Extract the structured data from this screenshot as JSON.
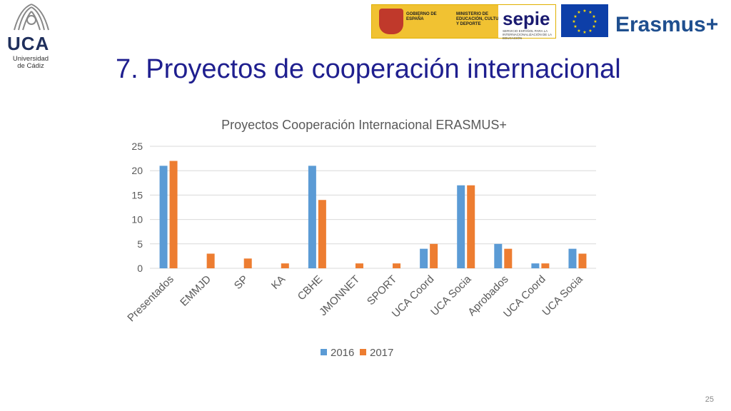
{
  "logo": {
    "uni_mark": "UCA",
    "uni_line1": "Universidad",
    "uni_line2": "de Cádiz"
  },
  "banners": {
    "gov_line1": "GOBIERNO DE ESPAÑA",
    "gov_line2": "MINISTERIO DE EDUCACIÓN, CULTURA Y DEPORTE",
    "sepie": "sepie",
    "sepie_sub": "SERVICIO ESPAÑOL PARA LA INTERNACIONALIZACIÓN DE LA EDUCACIÓN",
    "erasmus": "Erasmus+"
  },
  "slide": {
    "title": "7. Proyectos de cooperación internacional",
    "page_number": "25"
  },
  "colors": {
    "series_2016": "#5b9bd5",
    "series_2017": "#ed7d31",
    "grid": "#d9d9d9",
    "title": "#1f1f8f"
  },
  "chart_data": {
    "type": "bar",
    "title": "Proyectos Cooperación Internacional ERASMUS+",
    "categories": [
      "Presentados",
      "EMMJD",
      "SP",
      "KA",
      "CBHE",
      "JMONNET",
      "SPORT",
      "UCA Coord",
      "UCA Socia",
      "Aprobados",
      "UCA Coord",
      "UCA Socia"
    ],
    "series": [
      {
        "name": "2016",
        "values": [
          21,
          0,
          0,
          0,
          21,
          0,
          0,
          4,
          17,
          5,
          1,
          4
        ]
      },
      {
        "name": "2017",
        "values": [
          22,
          3,
          2,
          1,
          14,
          1,
          1,
          5,
          17,
          4,
          1,
          3
        ]
      }
    ],
    "ylim": [
      0,
      25
    ],
    "yticks": [
      0,
      5,
      10,
      15,
      20,
      25
    ],
    "grid": true,
    "legend": "bottom"
  }
}
